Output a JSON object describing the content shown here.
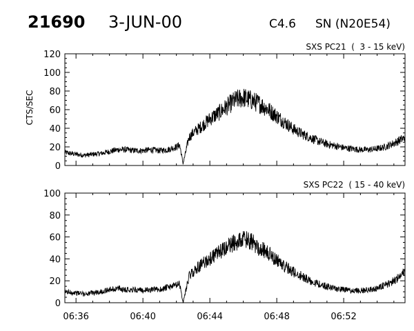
{
  "header": {
    "event_id": "21690",
    "date": "3-JUN-00",
    "flare_class": "C4.6",
    "location": "SN (N20E54)"
  },
  "chart_data": [
    {
      "type": "line",
      "title": "SXS PC21  (  3 - 15 keV)",
      "ylabel": "CTS/SEC",
      "xlabel": "",
      "ylim": [
        0,
        120
      ],
      "yticks": [
        0,
        20,
        40,
        60,
        80,
        100,
        120
      ],
      "xlim": [
        "06:35:20",
        "06:55:40"
      ],
      "xticks": [
        "06:36",
        "06:40",
        "06:44",
        "06:48",
        "06:52"
      ],
      "grid": false,
      "series": [
        {
          "points": [
            [
              "06:35:20",
              14
            ],
            [
              "06:36:00",
              12
            ],
            [
              "06:36:30",
              11
            ],
            [
              "06:37:00",
              12
            ],
            [
              "06:37:30",
              13
            ],
            [
              "06:38:00",
              15
            ],
            [
              "06:38:30",
              17
            ],
            [
              "06:39:00",
              17
            ],
            [
              "06:39:30",
              16
            ],
            [
              "06:40:00",
              16
            ],
            [
              "06:40:30",
              17
            ],
            [
              "06:41:00",
              16
            ],
            [
              "06:41:30",
              17
            ],
            [
              "06:42:00",
              20
            ],
            [
              "06:42:12",
              22
            ],
            [
              "06:42:24",
              2
            ],
            [
              "06:42:36",
              18
            ],
            [
              "06:42:45",
              30
            ],
            [
              "06:43:00",
              35
            ],
            [
              "06:43:30",
              42
            ],
            [
              "06:44:00",
              50
            ],
            [
              "06:44:30",
              56
            ],
            [
              "06:45:00",
              63
            ],
            [
              "06:45:30",
              70
            ],
            [
              "06:46:00",
              73
            ],
            [
              "06:46:30",
              70
            ],
            [
              "06:47:00",
              66
            ],
            [
              "06:47:30",
              60
            ],
            [
              "06:48:00",
              53
            ],
            [
              "06:48:30",
              46
            ],
            [
              "06:49:00",
              39
            ],
            [
              "06:49:30",
              34
            ],
            [
              "06:50:00",
              30
            ],
            [
              "06:50:30",
              26
            ],
            [
              "06:51:00",
              23
            ],
            [
              "06:51:30",
              21
            ],
            [
              "06:52:00",
              19
            ],
            [
              "06:52:30",
              18
            ],
            [
              "06:53:00",
              17
            ],
            [
              "06:53:30",
              17
            ],
            [
              "06:54:00",
              18
            ],
            [
              "06:54:30",
              20
            ],
            [
              "06:55:00",
              24
            ],
            [
              "06:55:40",
              30
            ]
          ]
        }
      ]
    },
    {
      "type": "line",
      "title": "SXS PC22  ( 15 - 40 keV)",
      "ylabel": "",
      "xlabel": "",
      "ylim": [
        0,
        100
      ],
      "yticks": [
        0,
        20,
        40,
        60,
        80,
        100
      ],
      "xlim": [
        "06:35:20",
        "06:55:40"
      ],
      "xticks": [
        "06:36",
        "06:40",
        "06:44",
        "06:48",
        "06:52"
      ],
      "grid": false,
      "series": [
        {
          "points": [
            [
              "06:35:20",
              10
            ],
            [
              "06:36:00",
              9
            ],
            [
              "06:36:30",
              8
            ],
            [
              "06:37:00",
              9
            ],
            [
              "06:37:30",
              10
            ],
            [
              "06:38:00",
              12
            ],
            [
              "06:38:30",
              13
            ],
            [
              "06:39:00",
              12
            ],
            [
              "06:39:30",
              12
            ],
            [
              "06:40:00",
              11
            ],
            [
              "06:40:30",
              12
            ],
            [
              "06:41:00",
              12
            ],
            [
              "06:41:30",
              14
            ],
            [
              "06:42:00",
              16
            ],
            [
              "06:42:12",
              17
            ],
            [
              "06:42:24",
              0
            ],
            [
              "06:42:36",
              14
            ],
            [
              "06:42:45",
              24
            ],
            [
              "06:43:00",
              28
            ],
            [
              "06:43:30",
              35
            ],
            [
              "06:44:00",
              40
            ],
            [
              "06:44:30",
              45
            ],
            [
              "06:45:00",
              50
            ],
            [
              "06:45:30",
              55
            ],
            [
              "06:46:00",
              58
            ],
            [
              "06:46:30",
              55
            ],
            [
              "06:47:00",
              50
            ],
            [
              "06:47:30",
              45
            ],
            [
              "06:48:00",
              39
            ],
            [
              "06:48:30",
              33
            ],
            [
              "06:49:00",
              28
            ],
            [
              "06:49:30",
              24
            ],
            [
              "06:50:00",
              20
            ],
            [
              "06:50:30",
              17
            ],
            [
              "06:51:00",
              15
            ],
            [
              "06:51:30",
              13
            ],
            [
              "06:52:00",
              12
            ],
            [
              "06:52:30",
              11
            ],
            [
              "06:53:00",
              11
            ],
            [
              "06:53:30",
              12
            ],
            [
              "06:54:00",
              13
            ],
            [
              "06:54:30",
              16
            ],
            [
              "06:55:00",
              20
            ],
            [
              "06:55:40",
              28
            ]
          ]
        }
      ]
    }
  ]
}
